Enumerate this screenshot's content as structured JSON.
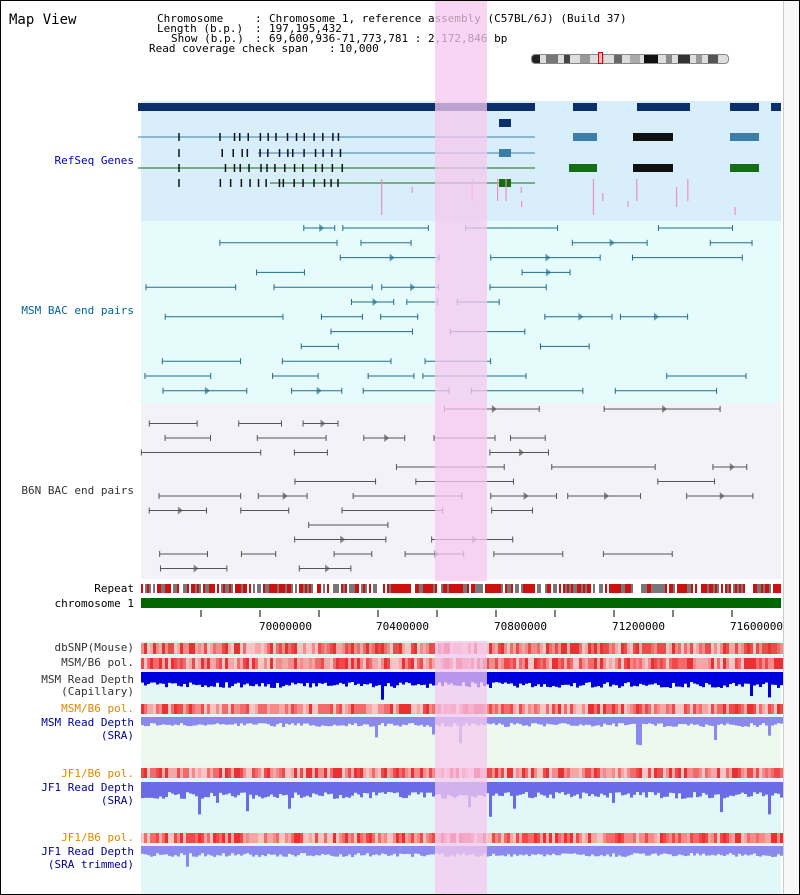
{
  "title": "Map View",
  "info": {
    "chromosome_key": "Chromosome",
    "chromosome_value": "Chromosome 1, reference assembly (C57BL/6J) (Build 37)",
    "length_key": "Length (b.p.)",
    "length_value": "197,195,432",
    "show_key": "Show (b.p.)",
    "show_value": "69,600,936-71,773,781 : 2,172,846 bp",
    "coverage_key": "Read coverage check span",
    "coverage_value": "10,000"
  },
  "tracks": {
    "refseq": "RefSeq Genes",
    "msm_bac": "MSM BAC end pairs",
    "b6n_bac": "B6N BAC end pairs",
    "repeat": "Repeat",
    "chromosome": "chromosome 1",
    "dbsnp": "dbSNP(Mouse)",
    "msm_b6_pol": "MSM/B6 pol.",
    "msm_depth_cap_1": "MSM Read Depth",
    "msm_depth_cap_2": "(Capillary)",
    "msm_b6_pol_2": "MSM/B6 pol.",
    "msm_depth_sra_1": "MSM Read Depth",
    "msm_depth_sra_2": "(SRA)",
    "jf1_b6_pol": "JF1/B6 pol.",
    "jf1_depth_sra_1": "JF1 Read Depth",
    "jf1_depth_sra_2": "(SRA)",
    "jf1_b6_pol_2": "JF1/B6 pol.",
    "jf1_depth_trim_1": "JF1 Read Depth",
    "jf1_depth_trim_2": "(SRA trimmed)"
  },
  "axis": {
    "ticks": [
      "70000000",
      "70400000",
      "70800000",
      "71200000",
      "71600000"
    ]
  },
  "colors": {
    "refseq_label": "#0000bb",
    "msm_label": "#006699",
    "b6n_label": "#333333",
    "orange_label": "#e08800",
    "blue_label": "#000099",
    "highlight": "#f5c8ef",
    "chromosome_bar": "#006600"
  }
}
